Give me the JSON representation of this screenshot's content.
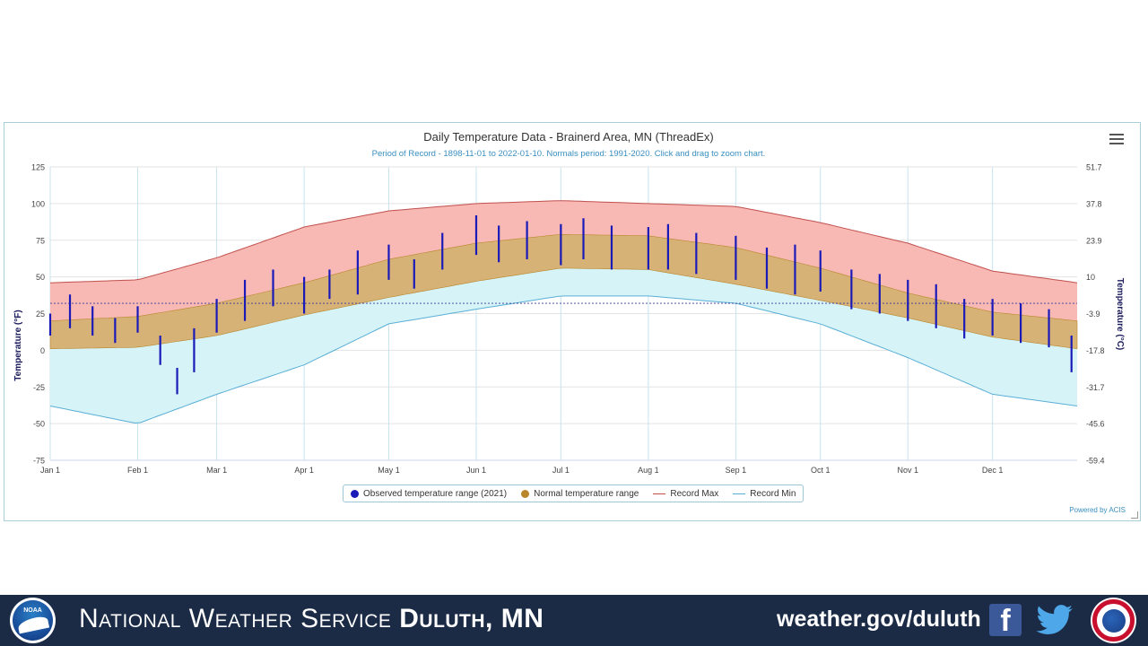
{
  "chart_data": {
    "type": "area",
    "title": "Daily Temperature Data - Brainerd Area, MN (ThreadEx)",
    "subtitle": "Period of Record - 1898-11-01 to 2022-01-10. Normals period: 1991-2020. Click and drag to zoom chart.",
    "ylabel": "Temperature (°F)",
    "ylabel_right": "Temperature (°C)",
    "ylim": [
      -75,
      125
    ],
    "y_ticks": [
      "125",
      "100",
      "75",
      "50",
      "25",
      "0",
      "-25",
      "-50",
      "-75"
    ],
    "y_ticks_right": [
      "51.7",
      "37.8",
      "23.9",
      "10",
      "-3.9",
      "-17.8",
      "-31.7",
      "-45.6",
      "-59.4"
    ],
    "x_ticks": [
      "Jan 1",
      "Feb 1",
      "Mar 1",
      "Apr 1",
      "May 1",
      "Jun 1",
      "Jul 1",
      "Aug 1",
      "Sep 1",
      "Oct 1",
      "Nov 1",
      "Dec 1"
    ],
    "x_tick_days": [
      1,
      32,
      60,
      91,
      121,
      152,
      182,
      213,
      244,
      274,
      305,
      335
    ],
    "days_in_year": 365,
    "freezing_line_f": 32,
    "grid": true,
    "legend_position": "bottom-center",
    "series": [
      {
        "name": "Observed temperature range (2021)",
        "color": "#1a1ab8",
        "style": "column-range",
        "days": [
          1,
          8,
          16,
          24,
          32,
          40,
          46,
          52,
          60,
          70,
          80,
          91,
          100,
          110,
          121,
          130,
          140,
          152,
          160,
          170,
          182,
          190,
          200,
          213,
          220,
          230,
          244,
          255,
          265,
          274,
          285,
          295,
          305,
          315,
          325,
          335,
          345,
          355,
          363
        ],
        "highs": [
          25,
          38,
          30,
          22,
          30,
          10,
          -12,
          15,
          35,
          48,
          55,
          50,
          55,
          68,
          72,
          62,
          80,
          92,
          85,
          88,
          86,
          90,
          85,
          84,
          86,
          80,
          78,
          70,
          72,
          68,
          55,
          52,
          48,
          45,
          35,
          35,
          32,
          28,
          10
        ],
        "lows": [
          10,
          15,
          10,
          5,
          12,
          -10,
          -30,
          -15,
          12,
          20,
          30,
          25,
          35,
          38,
          48,
          42,
          55,
          65,
          60,
          62,
          58,
          62,
          55,
          55,
          55,
          52,
          48,
          42,
          38,
          40,
          28,
          25,
          20,
          15,
          8,
          10,
          5,
          2,
          -15
        ]
      },
      {
        "name": "Normal temperature range",
        "color": "#b8862b",
        "style": "area-range",
        "days": [
          1,
          32,
          60,
          91,
          121,
          152,
          182,
          213,
          244,
          274,
          305,
          335,
          365
        ],
        "highs": [
          20,
          23,
          32,
          46,
          62,
          73,
          79,
          78,
          70,
          56,
          39,
          26,
          20
        ],
        "lows": [
          1,
          2,
          10,
          24,
          36,
          47,
          56,
          55,
          45,
          34,
          22,
          9,
          1
        ]
      },
      {
        "name": "Record Max",
        "color": "#c0504d",
        "style": "line",
        "days": [
          1,
          32,
          60,
          91,
          121,
          152,
          182,
          213,
          244,
          274,
          305,
          335,
          365
        ],
        "values": [
          46,
          48,
          63,
          84,
          95,
          100,
          102,
          100,
          98,
          87,
          73,
          54,
          46
        ]
      },
      {
        "name": "Record Min",
        "color": "#5aaed6",
        "style": "line",
        "days": [
          1,
          32,
          60,
          91,
          121,
          152,
          182,
          213,
          244,
          274,
          305,
          335,
          365
        ],
        "values": [
          -38,
          -50,
          -30,
          -10,
          18,
          28,
          37,
          37,
          32,
          18,
          -5,
          -30,
          -38
        ]
      }
    ]
  },
  "legend": {
    "observed": "Observed temperature range (2021)",
    "normal": "Normal temperature range",
    "record_max": "Record Max",
    "record_min": "Record Min"
  },
  "credit": "Powered by ACIS",
  "colors": {
    "observed": "#1a1ab8",
    "normal": "#b8862b",
    "record_max_line": "#c0504d",
    "record_min_line": "#5aaed6",
    "record_max_fill": "#f8b8b4",
    "record_min_fill": "#d6f4f8",
    "normal_fill": "#d7b277",
    "footer_bg": "#1b2a45"
  },
  "footer": {
    "agency_light": "National Weather Service",
    "agency_bold": "Duluth, MN",
    "url": "weather.gov/duluth",
    "noaa_text": "NOAA",
    "icons": [
      "noaa-logo-icon",
      "facebook-icon",
      "twitter-icon",
      "nws-logo-icon"
    ]
  }
}
